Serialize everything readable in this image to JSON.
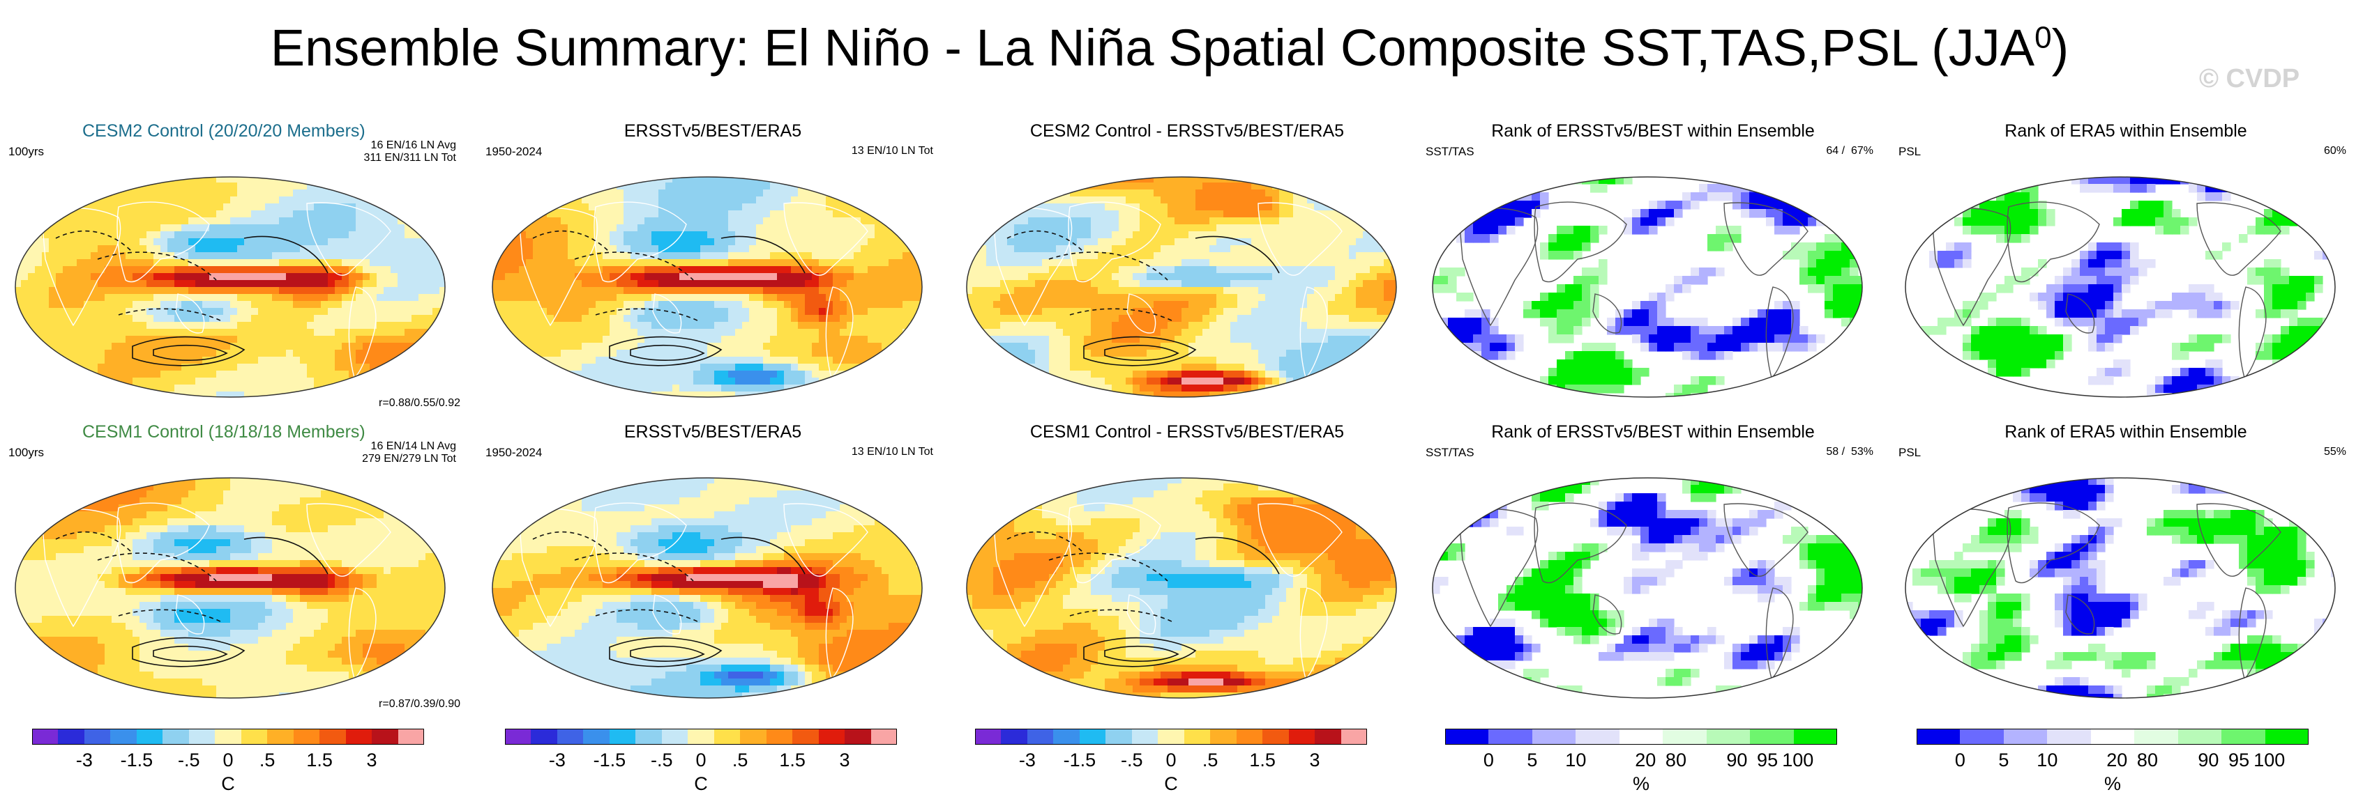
{
  "title": {
    "prefix": "Ensemble Summary: El Niño - La Niña Spatial Composite SST,TAS,PSL (JJA",
    "superscript": "0",
    "suffix": ")"
  },
  "watermark": "© CVDP",
  "colors": {
    "cesm2_title": "#1c6e8c",
    "cesm1_title": "#3f8a44",
    "sst_palette": [
      "#7a2ad6",
      "#2b2bd9",
      "#3f63e6",
      "#3a90ec",
      "#1fbbf2",
      "#8fd1f0",
      "#c6e7f6",
      "#fff6b0",
      "#ffe04a",
      "#ffb026",
      "#ff8a18",
      "#f25a10",
      "#e01c0c",
      "#b8121a",
      "#f9a5a5"
    ],
    "rank_palette": [
      "#0000ee",
      "#6a6aff",
      "#b3b3ff",
      "#e2e2fa",
      "#ffffff",
      "#e2fde2",
      "#b8fab8",
      "#6ef56e",
      "#00ee00"
    ]
  },
  "rows": [
    {
      "model": "CESM2 Control (20/20/20 Members)",
      "model_note_lines": [
        "16 EN/16 LN Avg",
        "311 EN/311 LN Tot"
      ],
      "model_left_note": "100yrs",
      "model_corr": "r=0.88/0.55/0.92",
      "obs_title": "ERSSTv5/BEST/ERA5",
      "obs_left_note": "1950-2024",
      "obs_note": "13 EN/10 LN Tot",
      "diff_title": "CESM2 Control - ERSSTv5/BEST/ERA5",
      "rank1_title": "Rank of ERSSTv5/BEST within Ensemble",
      "rank1_left": "SST/TAS",
      "rank1_pct": "64 /  67%",
      "rank2_title": "Rank of ERA5 within Ensemble",
      "rank2_left": "PSL",
      "rank2_pct": "60%"
    },
    {
      "model": "CESM1 Control (18/18/18 Members)",
      "model_note_lines": [
        "16 EN/14 LN Avg",
        "279 EN/279 LN Tot"
      ],
      "model_left_note": "100yrs",
      "model_corr": "r=0.87/0.39/0.90",
      "obs_title": "ERSSTv5/BEST/ERA5",
      "obs_left_note": "1950-2024",
      "obs_note": "13 EN/10 LN Tot",
      "diff_title": "CESM1 Control - ERSSTv5/BEST/ERA5",
      "rank1_title": "Rank of ERSSTv5/BEST within Ensemble",
      "rank1_left": "SST/TAS",
      "rank1_pct": "58 /  53%",
      "rank2_title": "Rank of ERA5 within Ensemble",
      "rank2_left": "PSL",
      "rank2_pct": "55%"
    }
  ],
  "colorbars": {
    "sst": {
      "ticks": [
        "-3",
        "-1.5",
        "-.5",
        "0",
        ".5",
        "1.5",
        "3"
      ],
      "unit": "C"
    },
    "rank": {
      "ticks": [
        "0",
        "5",
        "10",
        "20",
        "80",
        "90",
        "95",
        "100"
      ],
      "unit": "%"
    }
  },
  "chart_data": {
    "type": "heatmap",
    "title": "Ensemble Summary: El Niño - La Niña Spatial Composite SST,TAS,PSL (JJA0)",
    "layout": "2 rows x 5 columns of global map panels (Robinson-like projection)",
    "columns": [
      "model composite",
      "observed composite",
      "model minus observed",
      "rank of ERSSTv5/BEST within ensemble (SST/TAS)",
      "rank of ERA5 within ensemble (PSL)"
    ],
    "sst_levels_C": [
      -4,
      -3,
      -2,
      -1.5,
      -1,
      -0.5,
      -0.25,
      0,
      0.25,
      0.5,
      1,
      1.5,
      2,
      3,
      4
    ],
    "sst_labeled_ticks": [
      "-3",
      "-1.5",
      "-.5",
      "0",
      ".5",
      "1.5",
      "3"
    ],
    "rank_levels_pct": [
      0,
      5,
      10,
      20,
      80,
      90,
      95,
      100
    ],
    "pattern_corr": [
      {
        "panel": "CESM2 Control",
        "sst": 0.88,
        "tas": 0.55,
        "psl": 0.92
      },
      {
        "panel": "CESM1 Control",
        "sst": 0.87,
        "tas": 0.39,
        "psl": 0.9
      }
    ],
    "area_within_rank_pct": [
      {
        "panel": "CESM2",
        "sst": 64,
        "tas": 67,
        "psl": 60
      },
      {
        "panel": "CESM1",
        "sst": 58,
        "tas": 53,
        "psl": 55
      }
    ],
    "composite_counts": [
      {
        "panel": "CESM2 Control",
        "en_avg": 16,
        "ln_avg": 16,
        "en_tot": 311,
        "ln_tot": 311,
        "members": "20/20/20",
        "length": "100yrs"
      },
      {
        "panel": "CESM1 Control",
        "en_avg": 16,
        "ln_avg": 14,
        "en_tot": 279,
        "ln_tot": 279,
        "members": "18/18/18",
        "length": "100yrs"
      },
      {
        "panel": "ERSSTv5/BEST/ERA5",
        "en_tot": 13,
        "ln_tot": 10,
        "period": "1950-2024"
      }
    ]
  }
}
